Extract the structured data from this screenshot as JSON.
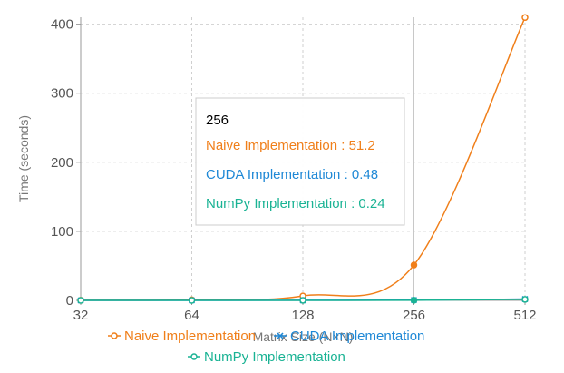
{
  "chart_data": {
    "type": "line",
    "x_scale": "log2",
    "categories": [
      "32",
      "64",
      "128",
      "256",
      "512"
    ],
    "x": [
      32,
      64,
      128,
      256,
      512
    ],
    "xlabel": "Matrix Size (N×N)",
    "ylabel": "Time (seconds)",
    "ylim": [
      0,
      410
    ],
    "yticks": [
      0,
      100,
      200,
      300,
      400
    ],
    "grid": true,
    "legend_position": "bottom",
    "series": [
      {
        "name": "Naive Implementation",
        "values": [
          0.1,
          0.8,
          6.4,
          51.2,
          409.6
        ],
        "color": "#f07f1a",
        "marker": "circle"
      },
      {
        "name": "CUDA Implementation",
        "values": [
          0.02,
          0.06,
          0.12,
          0.48,
          1.9
        ],
        "color": "#1e88d6",
        "marker": "x"
      },
      {
        "name": "NumPy Implementation",
        "values": [
          0.01,
          0.03,
          0.06,
          0.24,
          1.4
        ],
        "color": "#1ab394",
        "marker": "circle"
      }
    ],
    "tooltip": {
      "title": "256",
      "lines": [
        "Naive Implementation : 51.2",
        "CUDA Implementation : 0.48",
        "NumPy Implementation : 0.24"
      ]
    }
  }
}
